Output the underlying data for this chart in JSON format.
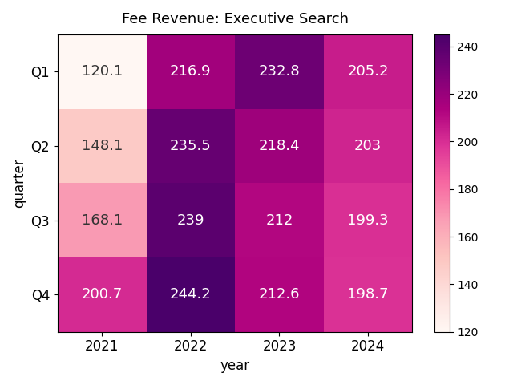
{
  "title": "Fee Revenue: Executive Search",
  "xlabel": "year",
  "ylabel": "quarter",
  "years": [
    2021,
    2022,
    2023,
    2024
  ],
  "quarters": [
    "Q1",
    "Q2",
    "Q3",
    "Q4"
  ],
  "values": [
    [
      120.1,
      216.9,
      232.8,
      205.2
    ],
    [
      148.1,
      235.5,
      218.4,
      203.0
    ],
    [
      168.1,
      239.0,
      212.0,
      199.3
    ],
    [
      200.7,
      244.2,
      212.6,
      198.7
    ]
  ],
  "colormap": "RdPu",
  "text_color_dark": "#333333",
  "text_color_light": "white",
  "text_fontsize": 13,
  "title_fontsize": 13,
  "vmin": 120,
  "vmax": 245,
  "dark_threshold": 170
}
